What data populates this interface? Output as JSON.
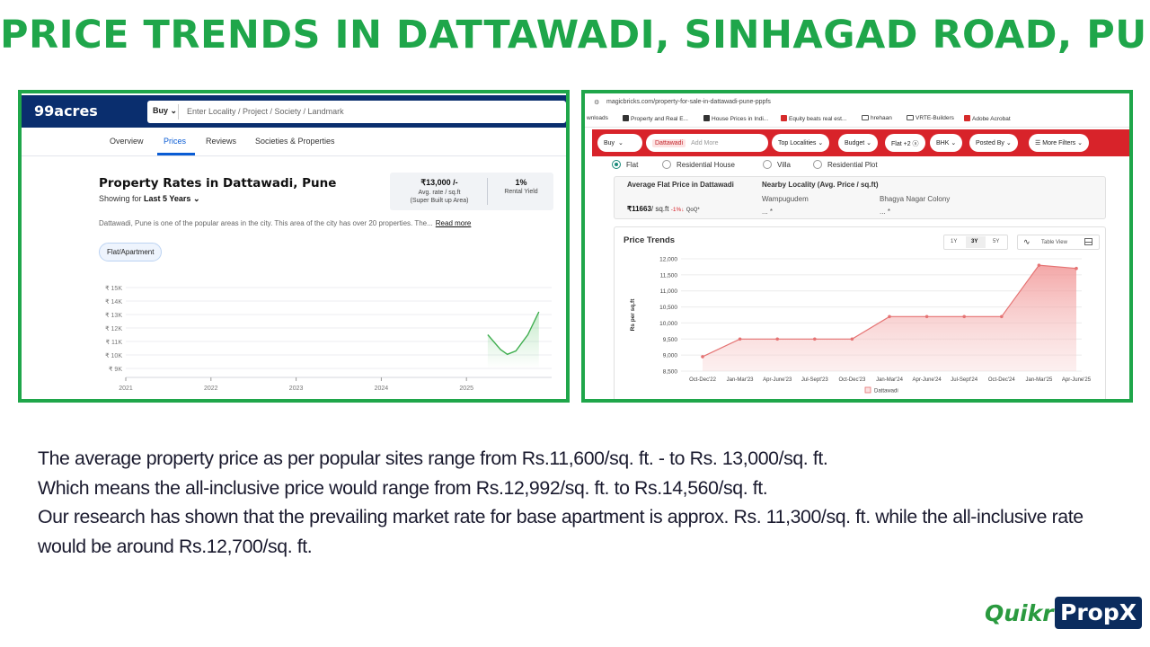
{
  "title": "PRICE TRENDS IN DATTAWADI, SINHAGAD ROAD, PUNE",
  "left_panel": {
    "logo": "99acres",
    "search": {
      "buy_label": "Buy",
      "placeholder": "Enter Locality / Project / Society / Landmark"
    },
    "nav": [
      "Overview",
      "Prices",
      "Reviews",
      "Societies & Properties"
    ],
    "active_nav": "Prices",
    "heading": "Property Rates in Dattawadi, Pune",
    "showing_prefix": "Showing for",
    "showing_period": "Last 5 Years",
    "avg_rate_value": "₹13,000 /-",
    "avg_rate_label": "Avg. rate / sq.ft",
    "avg_rate_sub": "(Super Built up Area)",
    "rental_yield_value": "1%",
    "rental_yield_label": "Rental Yield",
    "description": "Dattawadi, Pune is one of the popular areas in the city. This area of the city has over 20 properties. The...",
    "read_more": "Read more",
    "chip": "Flat/Apartment"
  },
  "left_chart": {
    "type": "line",
    "y_ticks": [
      "₹ 15K",
      "₹ 14K",
      "₹ 13K",
      "₹ 12K",
      "₹ 11K",
      "₹ 10K",
      "₹ 9K"
    ],
    "x_ticks": [
      "2021",
      "2022",
      "2023",
      "2024",
      "2025"
    ],
    "ylim": [
      9000,
      15000
    ],
    "xlim": [
      2021,
      2026
    ],
    "series": [
      {
        "values": [
          {
            "x": 2025.25,
            "y": 11500
          },
          {
            "x": 2025.4,
            "y": 10400
          },
          {
            "x": 2025.48,
            "y": 10050
          },
          {
            "x": 2025.58,
            "y": 10300
          },
          {
            "x": 2025.72,
            "y": 11500
          },
          {
            "x": 2025.85,
            "y": 13200
          }
        ]
      }
    ]
  },
  "right_panel": {
    "url": "magicbricks.com/property-for-sale-in-dattawadi-pune-pppfs",
    "bookmarks": [
      "wnloads",
      "Property and Real E...",
      "House Prices in Indi...",
      "Equity beats real est...",
      "hrehaan",
      "VRTE-Builders",
      "Adobe Acrobat"
    ],
    "filter_buy": "Buy",
    "filter_locality_tag": "Dattawadi",
    "filter_add_more": "Add More",
    "filters": [
      "Top Localities",
      "Budget",
      "Flat +2",
      "BHK",
      "Posted By",
      "More Filters"
    ],
    "property_types": [
      "Flat",
      "Residential House",
      "Villa",
      "Residential Plot"
    ],
    "selected_type": "Flat",
    "avg_title": "Average Flat Price in Dattawadi",
    "avg_value": "₹11663",
    "avg_unit": "/ sq.ft",
    "avg_change": "-1%",
    "avg_change_period": "QoQ*",
    "nearby_title": "Nearby Locality (Avg. Price / sq.ft)",
    "nearby": [
      {
        "name": "Wampugudem",
        "price": "... *"
      },
      {
        "name": "Bhagya Nagar Colony",
        "price": "... *"
      }
    ],
    "chart_title": "Price Trends",
    "range_tabs": [
      "1Y",
      "3Y",
      "5Y"
    ],
    "active_tab": "3Y",
    "table_view": "Table View"
  },
  "chart_data": {
    "type": "area",
    "categories": [
      "Oct-Dec'22",
      "Jan-Mar'23",
      "Apr-June'23",
      "Jul-Sept'23",
      "Oct-Dec'23",
      "Jan-Mar'24",
      "Apr-June'24",
      "Jul-Sept'24",
      "Oct-Dec'24",
      "Jan-Mar'25",
      "Apr-June'25"
    ],
    "series": [
      {
        "name": "Dattawadi",
        "values": [
          8950,
          9500,
          9500,
          9500,
          9500,
          10200,
          10200,
          10200,
          10200,
          11800,
          11700
        ]
      }
    ],
    "y_ticks": [
      "12,000",
      "11,500",
      "11,000",
      "10,500",
      "10,000",
      "9,500",
      "9,000",
      "8,500"
    ],
    "ylim": [
      8500,
      12000
    ],
    "ylabel": "Rs per sq.ft",
    "legend": "bottom",
    "grid": true,
    "colors": {
      "line": "#e57373",
      "fill": "#f4b0b0"
    }
  },
  "body_text": [
    "The average property price as per popular sites range from Rs.11,600/sq. ft. - to Rs. 13,000/sq. ft.",
    "Which means the all-inclusive price would range from Rs.12,992/sq. ft. to Rs.14,560/sq. ft.",
    "Our research has shown that the prevailing market rate for base apartment is approx. Rs. 11,300/sq. ft. while the all-inclusive rate would be around Rs.12,700/sq. ft."
  ],
  "logo": {
    "quikr": "Quikr",
    "propx": "PropX"
  },
  "colors": {
    "title_green": "#1fa64a",
    "header_navy": "#0a2e6e",
    "filter_red": "#d8232a",
    "logo_navy": "#0b2c5e"
  }
}
